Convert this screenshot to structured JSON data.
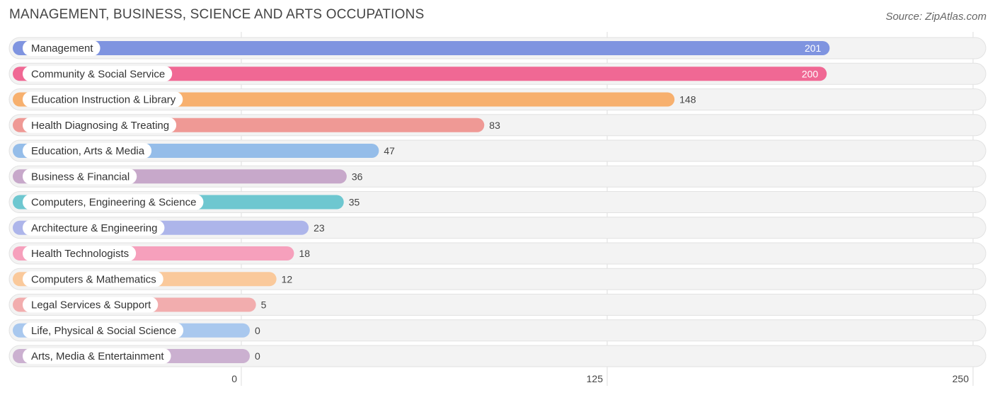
{
  "title": "MANAGEMENT, BUSINESS, SCIENCE AND ARTS OCCUPATIONS",
  "source": "Source: ZipAtlas.com",
  "chart_data": {
    "type": "bar",
    "orientation": "horizontal",
    "title": "MANAGEMENT, BUSINESS, SCIENCE AND ARTS OCCUPATIONS",
    "xlim": [
      0,
      250
    ],
    "xticks": [
      0,
      125,
      250
    ],
    "grid": true,
    "categories": [
      "Management",
      "Community & Social Service",
      "Education Instruction & Library",
      "Health Diagnosing & Treating",
      "Education, Arts & Media",
      "Business & Financial",
      "Computers, Engineering & Science",
      "Architecture & Engineering",
      "Health Technologists",
      "Computers & Mathematics",
      "Legal Services & Support",
      "Life, Physical & Social Science",
      "Arts, Media & Entertainment"
    ],
    "values": [
      201,
      200,
      148,
      83,
      47,
      36,
      35,
      23,
      18,
      12,
      5,
      0,
      0
    ],
    "colors": [
      "#7f94e0",
      "#f06894",
      "#f7b06e",
      "#ef9995",
      "#95bde9",
      "#c7a8ca",
      "#6ec7d0",
      "#adb5ea",
      "#f6a0bc",
      "#fac99b",
      "#f2adae",
      "#a9c8ee",
      "#cbb0d0"
    ]
  }
}
